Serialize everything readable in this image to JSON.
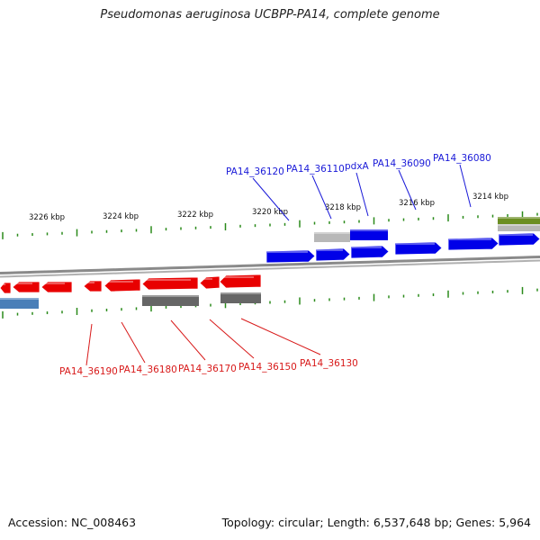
{
  "title": "Pseudomonas aeruginosa UCBPP-PA14, complete genome",
  "accession_label": "Accession: NC_008463",
  "summary_label": "Topology: circular; Length: 6,537,648 bp; Genes: 5,964",
  "scale_labels": [
    "3226 kbp",
    "3224 kbp",
    "3222 kbp",
    "3220 kbp",
    "3218 kbp",
    "3216 kbp",
    "3214 kbp"
  ],
  "forward_gene_labels": [
    "PA14_36120",
    "PA14_36110",
    "pdxA",
    "PA14_36090",
    "PA14_36080"
  ],
  "reverse_gene_labels": [
    "PA14_36190",
    "PA14_36180",
    "PA14_36170",
    "PA14_36150",
    "PA14_36130"
  ],
  "colors": {
    "forward_gene": "#0000e8",
    "reverse_gene": "#e80000",
    "tick": "#2a8a1a",
    "backbone": "#8a8a8a",
    "label_blue": "#1a1ad8",
    "label_red": "#d81a1a",
    "feature_gray": "#b8b8b8",
    "feature_dark": "#666666",
    "feature_steel": "#4a7fb8",
    "feature_olive": "#6b8e23"
  }
}
